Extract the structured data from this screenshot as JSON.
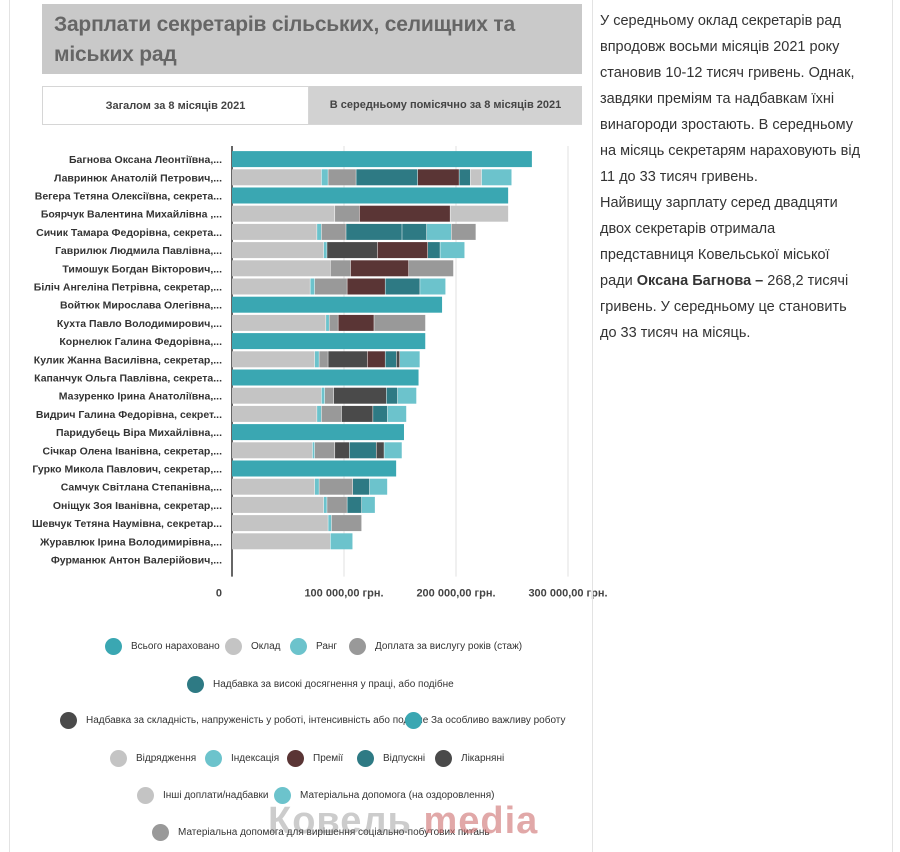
{
  "title": "Зарплати секретарів сільських, селищних та міських рад",
  "tabs": [
    {
      "label": "Загалом за 8 місяців 2021",
      "active": true
    },
    {
      "label": "В середньому помісячно за 8 місяців 2021",
      "active": false
    }
  ],
  "side_text": {
    "p1": "У середньому оклад секретарів рад впродовж восьми місяців 2021 року становив 10-12 тисяч гривень. Однак, завдяки преміям та надбавкам їхні винагороди зростають. В середньому на місяць секретарям нараховують від 11 до 33 тисяч гривень.",
    "p2_start": "Найвищу зарплату серед двадцяти двох секретарів отримала представниця Ковельської міської ради ",
    "p2_bold": "Оксана Багнова –",
    "p2_end": " 268,2 тисячі гривень. У середньому це становить до 33 тисяч на місяць."
  },
  "watermark": {
    "part1": "Ковель ",
    "part2": "media"
  },
  "chart_data": {
    "type": "bar",
    "orientation": "horizontal",
    "stacked": true,
    "xlim": [
      0,
      300000
    ],
    "x_ticks": [
      {
        "value": 0,
        "label": "0"
      },
      {
        "value": 100000,
        "label": "100 000,00 грн."
      },
      {
        "value": 200000,
        "label": "200 000,00 грн."
      },
      {
        "value": 300000,
        "label": "300 000,00 грн."
      }
    ],
    "categories": [
      "Багнова Оксана Леонтіївна,...",
      "Лавринюк Анатолій Петрович,...",
      "Вегера Тетяна Олексіївна, секрета...",
      "Боярчук Валентина Михайлівна ,...",
      "Сичик Тамара Федорівна, секрета...",
      "Гаврилюк Людмила Павлівна,...",
      "Тимошук Богдан Вікторович,...",
      "Біліч Ангеліна Петрівна, секретар,...",
      "Войтюк Мирослава Олегівна,...",
      "Кухта Павло Володимирович,...",
      "Корнелюк Галина Федорівна,...",
      "Кулик Жанна Василівна, секретар,...",
      "Капанчук Ольга Павлівна, секрета...",
      "Мазуренко Ірина Анатоліївна,...",
      "Видрич Галина Федорівна, секрет...",
      "Паридубець Віра Михайлівна,...",
      "Січкар Олена Іванівна, секретар,...",
      "Гурко Микола Павлович, секретар,...",
      "Самчук Світлана Степанівна,...",
      "Оніщук Зоя Іванівна, секретар,...",
      "Шевчук Тетяна Наумівна, секретар...",
      "Журавлюк Ірина Володимирівна,...",
      "Фурманюк Антон Валерійович,..."
    ],
    "series": [
      {
        "name": "Всього нараховано",
        "color": "#3aa7b2",
        "values": [
          268200,
          0,
          247000,
          0,
          0,
          0,
          0,
          0,
          188000,
          0,
          173000,
          0,
          167000,
          0,
          0,
          154000,
          0,
          147000,
          0,
          0,
          0,
          0,
          0
        ]
      },
      {
        "name": "Оклад",
        "color": "#c4c4c4",
        "values": [
          0,
          80000,
          0,
          92000,
          76000,
          82000,
          88000,
          70000,
          0,
          84000,
          0,
          74000,
          0,
          80000,
          76000,
          0,
          72000,
          0,
          74000,
          82000,
          86000,
          88000,
          0
        ]
      },
      {
        "name": "Ранг",
        "color": "#6cc3cc",
        "values": [
          0,
          6000,
          0,
          0,
          4000,
          3000,
          0,
          4000,
          0,
          3000,
          0,
          4000,
          0,
          3000,
          4000,
          0,
          2000,
          0,
          4000,
          3000,
          3000,
          0,
          0
        ]
      },
      {
        "name": "Доплата за вислугу років (стаж)",
        "color": "#999999",
        "values": [
          0,
          25000,
          0,
          22000,
          22000,
          0,
          18000,
          29000,
          0,
          8000,
          0,
          8000,
          0,
          8000,
          18000,
          0,
          18000,
          0,
          30000,
          18000,
          0,
          0,
          0
        ]
      },
      {
        "name": "Надбавка за високі досягнення у праці, або подібне",
        "color": "#2e7a84",
        "values": [
          0,
          55000,
          0,
          0,
          50000,
          0,
          0,
          0,
          0,
          0,
          0,
          0,
          0,
          0,
          0,
          0,
          0,
          0,
          0,
          0,
          0,
          0,
          0
        ]
      },
      {
        "name": "Надбавка за складність, напруженість у роботі, інтенсивність або подібне",
        "color": "#4a4a4a",
        "values": [
          0,
          0,
          0,
          0,
          0,
          45000,
          0,
          0,
          0,
          0,
          0,
          35000,
          0,
          47000,
          28000,
          0,
          13000,
          0,
          0,
          0,
          0,
          0,
          0
        ]
      },
      {
        "name": "За особливо важливу роботу",
        "color": "#3aa7b2",
        "values": [
          0,
          0,
          0,
          0,
          0,
          0,
          0,
          0,
          0,
          0,
          0,
          0,
          0,
          0,
          0,
          0,
          0,
          0,
          0,
          0,
          0,
          0,
          0
        ]
      },
      {
        "name": "Відрядження",
        "color": "#c4c4c4",
        "values": [
          0,
          0,
          0,
          0,
          0,
          0,
          0,
          0,
          0,
          0,
          0,
          0,
          0,
          0,
          0,
          0,
          0,
          0,
          0,
          0,
          0,
          0,
          0
        ]
      },
      {
        "name": "Індексація",
        "color": "#6cc3cc",
        "values": [
          0,
          0,
          0,
          0,
          0,
          0,
          0,
          0,
          0,
          0,
          0,
          0,
          0,
          0,
          0,
          0,
          0,
          0,
          0,
          0,
          0,
          0,
          0
        ]
      },
      {
        "name": "Премії",
        "color": "#5a3535",
        "values": [
          0,
          37000,
          0,
          81000,
          0,
          45000,
          52000,
          34000,
          0,
          32000,
          0,
          16000,
          0,
          0,
          0,
          0,
          0,
          0,
          0,
          0,
          0,
          0,
          0
        ]
      },
      {
        "name": "Відпускні",
        "color": "#2e7a84",
        "values": [
          0,
          10000,
          0,
          0,
          22000,
          11000,
          0,
          31000,
          0,
          0,
          0,
          10000,
          0,
          10000,
          13000,
          0,
          24000,
          0,
          15000,
          13000,
          0,
          0,
          0
        ]
      },
      {
        "name": "Лікарняні",
        "color": "#4a4a4a",
        "values": [
          0,
          0,
          0,
          0,
          0,
          0,
          0,
          0,
          0,
          0,
          0,
          3000,
          0,
          0,
          0,
          0,
          7000,
          0,
          0,
          0,
          0,
          0,
          0
        ]
      },
      {
        "name": "Інші доплати/надбавки",
        "color": "#c4c4c4",
        "values": [
          0,
          10000,
          0,
          52000,
          0,
          0,
          0,
          0,
          0,
          0,
          0,
          0,
          0,
          0,
          0,
          0,
          0,
          0,
          0,
          0,
          0,
          0,
          0
        ]
      },
      {
        "name": "Матеріальна допомога (на оздоровлення)",
        "color": "#6cc3cc",
        "values": [
          0,
          27000,
          0,
          0,
          22000,
          22000,
          0,
          23000,
          0,
          0,
          0,
          18000,
          0,
          17000,
          17000,
          0,
          16000,
          0,
          16000,
          12000,
          0,
          20000,
          0
        ]
      },
      {
        "name": "Матеріальна допомога для вирішення соціально-побутових питань",
        "color": "#999999",
        "values": [
          0,
          0,
          0,
          0,
          22000,
          0,
          40000,
          0,
          0,
          46000,
          0,
          0,
          0,
          0,
          0,
          0,
          0,
          0,
          0,
          0,
          27000,
          0,
          0
        ]
      }
    ],
    "legend": {
      "placement": "bottom"
    },
    "grid": true
  }
}
